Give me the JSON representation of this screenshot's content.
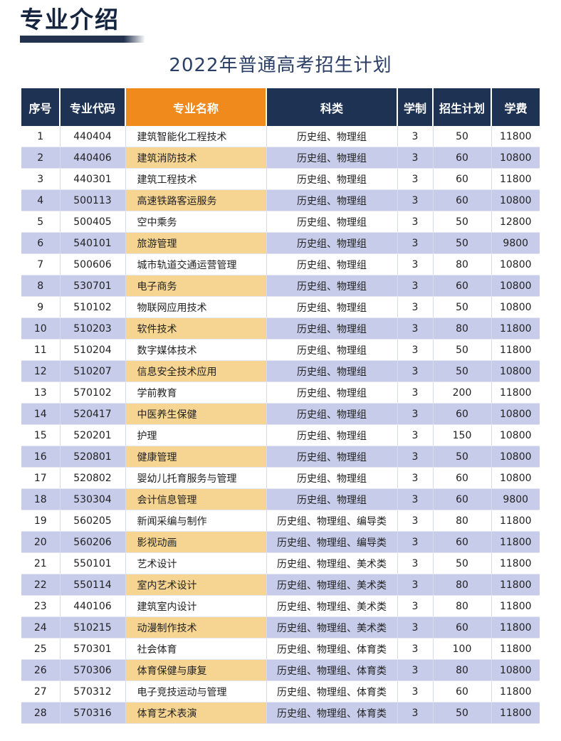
{
  "header": {
    "section_title": "专业介绍",
    "doc_title": "2022年普通高考招生计划"
  },
  "colors": {
    "header_bg": "#1e3354",
    "name_header_bg": "#f08a1c",
    "alt_row_bg": "#c6cce9",
    "alt_name_bg": "#f6d593"
  },
  "table": {
    "columns": [
      "序号",
      "专业代码",
      "专业名称",
      "科类",
      "学制",
      "招生计划",
      "学费"
    ],
    "rows": [
      [
        "1",
        "440404",
        "建筑智能化工程技术",
        "历史组、物理组",
        "3",
        "50",
        "11800"
      ],
      [
        "2",
        "440406",
        "建筑消防技术",
        "历史组、物理组",
        "3",
        "60",
        "10800"
      ],
      [
        "3",
        "440301",
        "建筑工程技术",
        "历史组、物理组",
        "3",
        "60",
        "11800"
      ],
      [
        "4",
        "500113",
        "高速铁路客运服务",
        "历史组、物理组",
        "3",
        "60",
        "10800"
      ],
      [
        "5",
        "500405",
        "空中乘务",
        "历史组、物理组",
        "3",
        "50",
        "12800"
      ],
      [
        "6",
        "540101",
        "旅游管理",
        "历史组、物理组",
        "3",
        "50",
        "9800"
      ],
      [
        "7",
        "500606",
        "城市轨道交通运营管理",
        "历史组、物理组",
        "3",
        "80",
        "10800"
      ],
      [
        "8",
        "530701",
        "电子商务",
        "历史组、物理组",
        "3",
        "60",
        "10800"
      ],
      [
        "9",
        "510102",
        "物联网应用技术",
        "历史组、物理组",
        "3",
        "50",
        "10800"
      ],
      [
        "10",
        "510203",
        "软件技术",
        "历史组、物理组",
        "3",
        "80",
        "11800"
      ],
      [
        "11",
        "510204",
        "数字媒体技术",
        "历史组、物理组",
        "3",
        "50",
        "11800"
      ],
      [
        "12",
        "510207",
        "信息安全技术应用",
        "历史组、物理组",
        "3",
        "50",
        "10800"
      ],
      [
        "13",
        "570102",
        "学前教育",
        "历史组、物理组",
        "3",
        "200",
        "11800"
      ],
      [
        "14",
        "520417",
        "中医养生保健",
        "历史组、物理组",
        "3",
        "60",
        "10800"
      ],
      [
        "15",
        "520201",
        "护理",
        "历史组、物理组",
        "3",
        "150",
        "10800"
      ],
      [
        "16",
        "520801",
        "健康管理",
        "历史组、物理组",
        "3",
        "50",
        "10800"
      ],
      [
        "17",
        "520802",
        "婴幼儿托育服务与管理",
        "历史组、物理组",
        "3",
        "60",
        "10800"
      ],
      [
        "18",
        "530304",
        "会计信息管理",
        "历史组、物理组",
        "3",
        "60",
        "9800"
      ],
      [
        "19",
        "560205",
        "新闻采编与制作",
        "历史组、物理组、编导类",
        "3",
        "80",
        "11800"
      ],
      [
        "20",
        "560206",
        "影视动画",
        "历史组、物理组、编导类",
        "3",
        "60",
        "11800"
      ],
      [
        "21",
        "550101",
        "艺术设计",
        "历史组、物理组、美术类",
        "3",
        "50",
        "11800"
      ],
      [
        "22",
        "550114",
        "室内艺术设计",
        "历史组、物理组、美术类",
        "3",
        "80",
        "11800"
      ],
      [
        "23",
        "440106",
        "建筑室内设计",
        "历史组、物理组、美术类",
        "3",
        "80",
        "11800"
      ],
      [
        "24",
        "510215",
        "动漫制作技术",
        "历史组、物理组、美术类",
        "3",
        "60",
        "11800"
      ],
      [
        "25",
        "570301",
        "社会体育",
        "历史组、物理组、体育类",
        "3",
        "100",
        "11800"
      ],
      [
        "26",
        "570306",
        "体育保健与康复",
        "历史组、物理组、体育类",
        "3",
        "80",
        "10800"
      ],
      [
        "27",
        "570312",
        "电子竞技运动与管理",
        "历史组、物理组、体育类",
        "3",
        "60",
        "11800"
      ],
      [
        "28",
        "570316",
        "体育艺术表演",
        "历史组、物理组、体育类",
        "3",
        "50",
        "11800"
      ]
    ]
  }
}
